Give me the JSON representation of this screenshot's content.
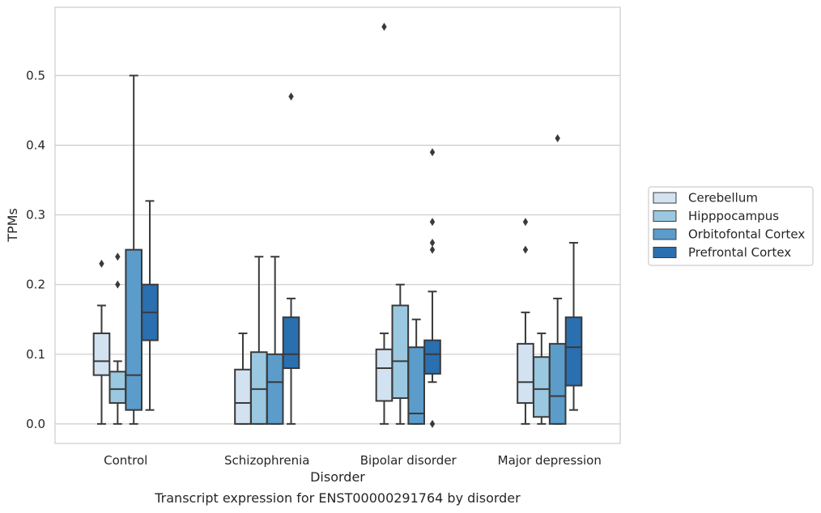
{
  "caption": "Transcript expression for ENST00000291764 by disorder",
  "chart_data": {
    "type": "boxplot",
    "title": "",
    "xlabel": "Disorder",
    "ylabel": "TPMs",
    "ylim": [
      -0.028,
      0.598
    ],
    "yticks": [
      0.0,
      0.1,
      0.2,
      0.3,
      0.4,
      0.5
    ],
    "ytick_labels": [
      "0.0",
      "0.1",
      "0.2",
      "0.3",
      "0.4",
      "0.5"
    ],
    "grid": "horizontal",
    "legend_position": "outside-right",
    "categories": [
      "Control",
      "Schizophrenia",
      "Bipolar disorder",
      "Major depression"
    ],
    "series": [
      {
        "name": "Cerebellum",
        "color": "#d2e2f1",
        "boxes": [
          {
            "whisker_low": 0.0,
            "q1": 0.07,
            "median": 0.09,
            "q3": 0.13,
            "whisker_high": 0.17,
            "outliers": [
              0.23
            ]
          },
          {
            "whisker_low": 0.0,
            "q1": 0.0,
            "median": 0.03,
            "q3": 0.078,
            "whisker_high": 0.13,
            "outliers": []
          },
          {
            "whisker_low": 0.0,
            "q1": 0.033,
            "median": 0.08,
            "q3": 0.107,
            "whisker_high": 0.13,
            "outliers": [
              0.57
            ]
          },
          {
            "whisker_low": 0.0,
            "q1": 0.03,
            "median": 0.06,
            "q3": 0.115,
            "whisker_high": 0.16,
            "outliers": [
              0.25,
              0.29
            ]
          }
        ]
      },
      {
        "name": "Hipppocampus",
        "color": "#9ac8e0",
        "boxes": [
          {
            "whisker_low": 0.0,
            "q1": 0.03,
            "median": 0.05,
            "q3": 0.075,
            "whisker_high": 0.09,
            "outliers": [
              0.2,
              0.24
            ]
          },
          {
            "whisker_low": 0.0,
            "q1": 0.0,
            "median": 0.05,
            "q3": 0.103,
            "whisker_high": 0.24,
            "outliers": []
          },
          {
            "whisker_low": 0.0,
            "q1": 0.037,
            "median": 0.09,
            "q3": 0.17,
            "whisker_high": 0.2,
            "outliers": []
          },
          {
            "whisker_low": 0.0,
            "q1": 0.01,
            "median": 0.05,
            "q3": 0.096,
            "whisker_high": 0.13,
            "outliers": []
          }
        ]
      },
      {
        "name": "Orbitofontal Cortex",
        "color": "#5b9ccb",
        "boxes": [
          {
            "whisker_low": 0.0,
            "q1": 0.02,
            "median": 0.07,
            "q3": 0.25,
            "whisker_high": 0.5,
            "outliers": []
          },
          {
            "whisker_low": 0.0,
            "q1": 0.0,
            "median": 0.06,
            "q3": 0.1,
            "whisker_high": 0.24,
            "outliers": []
          },
          {
            "whisker_low": 0.0,
            "q1": 0.0,
            "median": 0.015,
            "q3": 0.11,
            "whisker_high": 0.15,
            "outliers": []
          },
          {
            "whisker_low": 0.0,
            "q1": 0.0,
            "median": 0.04,
            "q3": 0.115,
            "whisker_high": 0.18,
            "outliers": [
              0.41
            ]
          }
        ]
      },
      {
        "name": "Prefrontal Cortex",
        "color": "#2a6fb0",
        "boxes": [
          {
            "whisker_low": 0.02,
            "q1": 0.12,
            "median": 0.16,
            "q3": 0.2,
            "whisker_high": 0.32,
            "outliers": []
          },
          {
            "whisker_low": 0.0,
            "q1": 0.08,
            "median": 0.1,
            "q3": 0.153,
            "whisker_high": 0.18,
            "outliers": [
              0.47
            ]
          },
          {
            "whisker_low": 0.06,
            "q1": 0.072,
            "median": 0.1,
            "q3": 0.12,
            "whisker_high": 0.19,
            "outliers": [
              0.0,
              0.25,
              0.26,
              0.29,
              0.39
            ]
          },
          {
            "whisker_low": 0.02,
            "q1": 0.055,
            "median": 0.11,
            "q3": 0.153,
            "whisker_high": 0.26,
            "outliers": []
          }
        ]
      }
    ]
  }
}
